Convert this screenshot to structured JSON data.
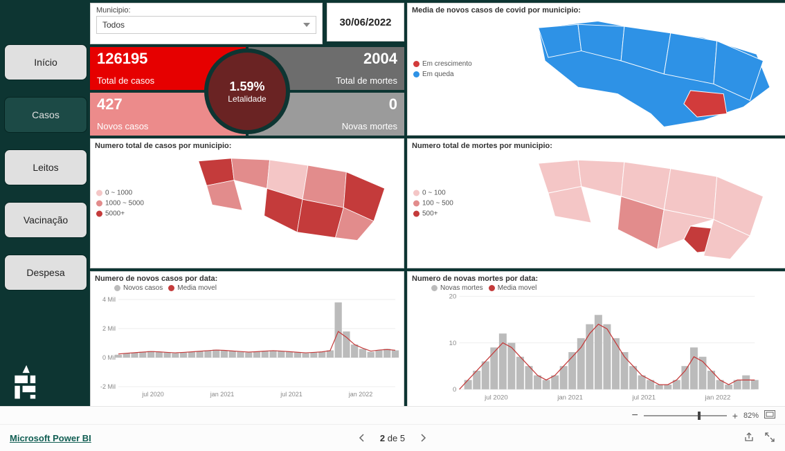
{
  "colors": {
    "bg": "#0d3532",
    "kpi_red": "#e60000",
    "kpi_grey": "#6d6d6d",
    "kpi_pink": "#ec8b8b",
    "kpi_grey2": "#9b9b9b",
    "circle": "#6a2323",
    "map_blue": "#2e92e6",
    "map_red": "#d23b3b",
    "pink1": "#f4c6c6",
    "pink2": "#e28c8c",
    "pink3": "#c43b3b",
    "bar_grey": "#bbbbbb",
    "line_red": "#c43b3b"
  },
  "nav": {
    "items": [
      {
        "label": "Início",
        "style": "light"
      },
      {
        "label": "Casos",
        "style": "dark"
      },
      {
        "label": "Leitos",
        "style": "light"
      },
      {
        "label": "Vacinação",
        "style": "light"
      },
      {
        "label": "Despesa",
        "style": "light"
      }
    ]
  },
  "filters": {
    "muni_label": "Municipio:",
    "muni_value": "Todos",
    "date_value": "30/06/2022"
  },
  "kpi": {
    "total_casos": {
      "num": "126195",
      "lbl": "Total de casos"
    },
    "total_mortes": {
      "num": "2004",
      "lbl": "Total de mortes"
    },
    "novos_casos": {
      "num": "427",
      "lbl": "Novos casos"
    },
    "novas_mortes": {
      "num": "0",
      "lbl": "Novas mortes"
    },
    "letalidade": {
      "num": "1.59%",
      "lbl": "Letalidade"
    }
  },
  "map_trend": {
    "title": "Media de novos casos de covid por municipio:",
    "legend": [
      {
        "label": "Em crescimento",
        "color": "#d23b3b"
      },
      {
        "label": "Em queda",
        "color": "#2e92e6"
      }
    ]
  },
  "map_cases": {
    "title": "Numero total de casos por municipio:",
    "legend": [
      {
        "label": "0 ~ 1000",
        "color": "#f4c6c6"
      },
      {
        "label": "1000 ~ 5000",
        "color": "#e28c8c"
      },
      {
        "label": "5000+",
        "color": "#c43b3b"
      }
    ]
  },
  "map_deaths": {
    "title": "Numero total de mortes por municipio:",
    "legend": [
      {
        "label": "0 ~ 100",
        "color": "#f4c6c6"
      },
      {
        "label": "100 ~ 500",
        "color": "#e28c8c"
      },
      {
        "label": "500+",
        "color": "#c43b3b"
      }
    ]
  },
  "chart_cases": {
    "title": "Numero de novos casos por data:",
    "legend": [
      {
        "label": "Novos casos",
        "color": "#bbbbbb"
      },
      {
        "label": "Media movel",
        "color": "#c43b3b"
      }
    ],
    "ylabels": [
      "4 Mil",
      "2 Mil",
      "0 Mil",
      "-2 Mil"
    ],
    "yvalues": [
      4000,
      2000,
      0,
      -2000
    ],
    "ylim": [
      -2000,
      4000
    ],
    "xlabels": [
      "jul 2020",
      "jan 2021",
      "jul 2021",
      "jan 2022"
    ],
    "series": [
      200,
      300,
      350,
      400,
      450,
      400,
      350,
      300,
      350,
      400,
      450,
      500,
      550,
      500,
      450,
      400,
      350,
      400,
      450,
      500,
      450,
      400,
      350,
      300,
      350,
      400,
      500,
      3800,
      1800,
      900,
      600,
      400,
      500,
      600,
      500
    ],
    "moving": [
      250,
      300,
      340,
      380,
      420,
      400,
      360,
      330,
      360,
      400,
      440,
      480,
      520,
      500,
      460,
      420,
      380,
      410,
      450,
      480,
      450,
      410,
      370,
      330,
      360,
      400,
      480,
      1800,
      1400,
      900,
      650,
      450,
      520,
      560,
      510
    ]
  },
  "chart_deaths": {
    "title": "Numero de novas mortes por data:",
    "legend": [
      {
        "label": "Novas mortes",
        "color": "#bbbbbb"
      },
      {
        "label": "Media movel",
        "color": "#c43b3b"
      }
    ],
    "ylabels": [
      "20",
      "10",
      "0"
    ],
    "yvalues": [
      20,
      10,
      0
    ],
    "ylim": [
      0,
      20
    ],
    "xlabels": [
      "jul 2020",
      "jan 2021",
      "jul 2021",
      "jan 2022"
    ],
    "series": [
      0,
      2,
      4,
      6,
      9,
      12,
      10,
      7,
      5,
      3,
      2,
      3,
      5,
      8,
      11,
      14,
      16,
      14,
      11,
      8,
      5,
      3,
      2,
      1,
      1,
      2,
      5,
      9,
      7,
      4,
      2,
      1,
      2,
      3,
      2
    ],
    "moving": [
      0,
      2,
      4,
      6,
      8,
      10,
      9,
      7,
      5,
      3,
      2,
      3,
      5,
      7,
      9,
      12,
      14,
      13,
      10,
      7,
      5,
      3,
      2,
      1,
      1,
      2,
      4,
      7,
      6,
      4,
      2,
      1,
      2,
      2,
      2
    ]
  },
  "footer": {
    "brand": "Microsoft Power BI",
    "page_current": "2",
    "page_sep": "de",
    "page_total": "5",
    "zoom": "82%"
  }
}
